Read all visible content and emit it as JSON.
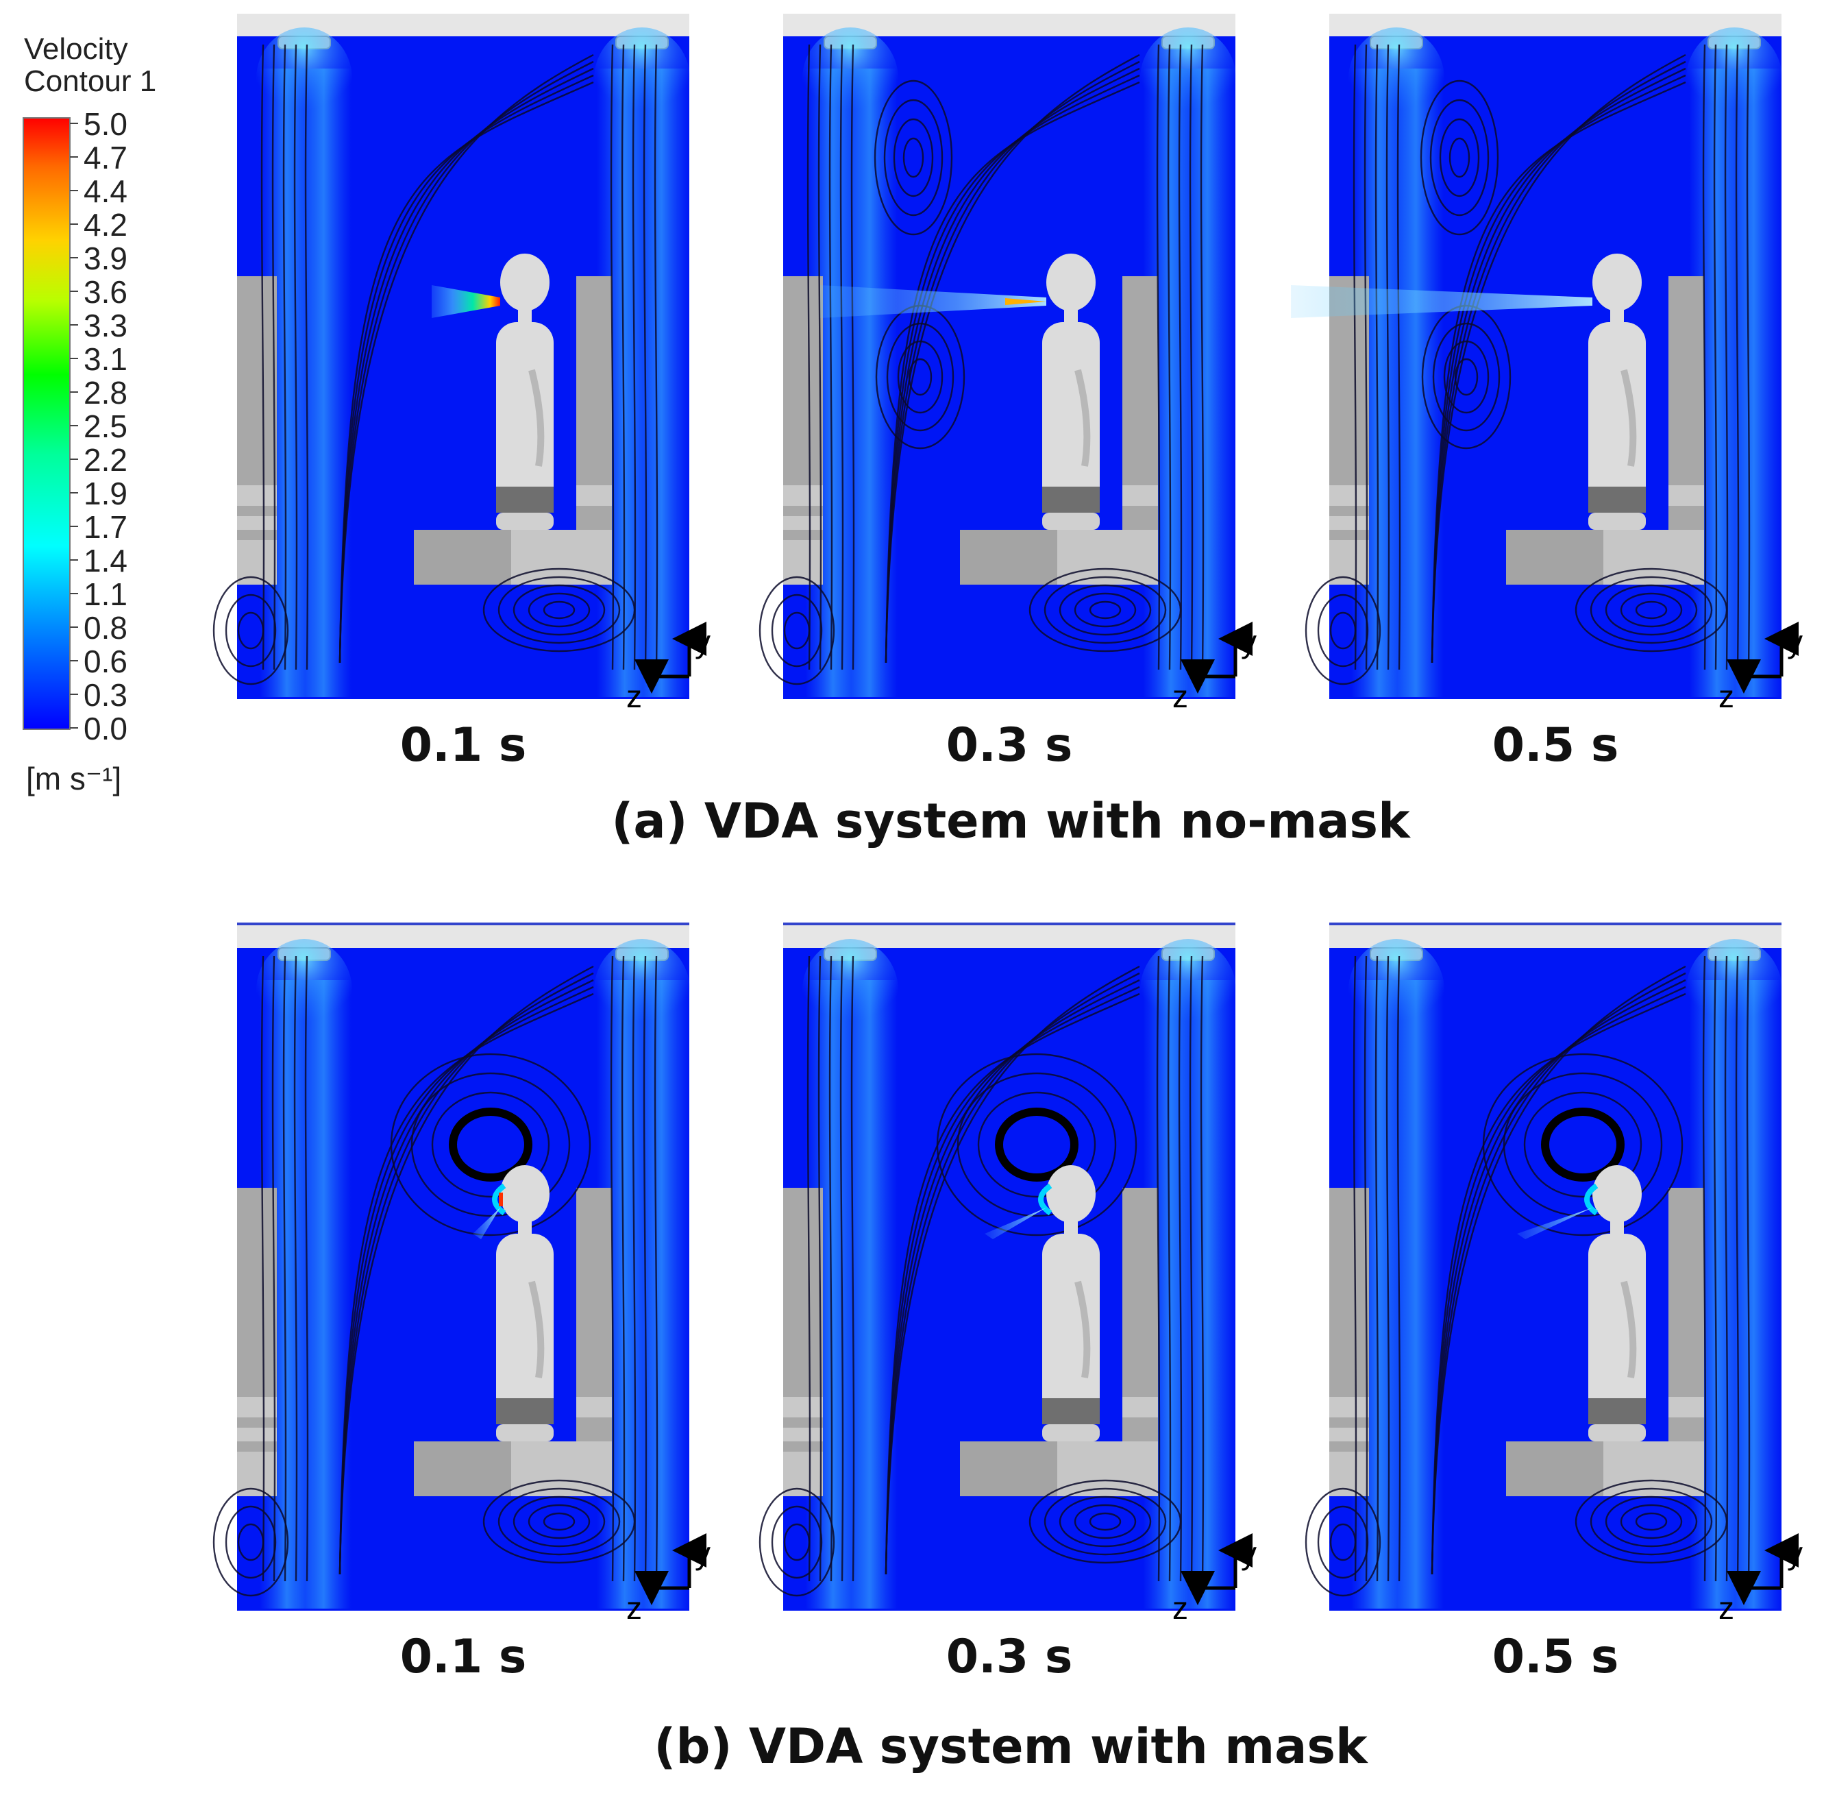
{
  "legend": {
    "title_line1": "Velocity",
    "title_line2": "Contour 1",
    "ticks": [
      "5.0",
      "4.7",
      "4.4",
      "4.2",
      "3.9",
      "3.6",
      "3.3",
      "3.1",
      "2.8",
      "2.5",
      "2.2",
      "1.9",
      "1.7",
      "1.4",
      "1.1",
      "0.8",
      "0.6",
      "0.3",
      "0.0"
    ],
    "unit": "[m s⁻¹]",
    "colors": [
      "#ff0000",
      "#ff6a00",
      "#ffd200",
      "#b8ff00",
      "#00ff00",
      "#00ff9a",
      "#00ffff",
      "#008cff",
      "#0000ff"
    ]
  },
  "axis_labels": {
    "vertical": "y",
    "horizontal": "z"
  },
  "rows": [
    {
      "caption": "(a) VDA system with no-mask",
      "panels": [
        {
          "time": "0.1 s"
        },
        {
          "time": "0.3 s"
        },
        {
          "time": "0.5 s"
        }
      ]
    },
    {
      "caption": "(b) VDA system with mask",
      "panels": [
        {
          "time": "0.1 s"
        },
        {
          "time": "0.3 s"
        },
        {
          "time": "0.5 s"
        }
      ]
    }
  ]
}
